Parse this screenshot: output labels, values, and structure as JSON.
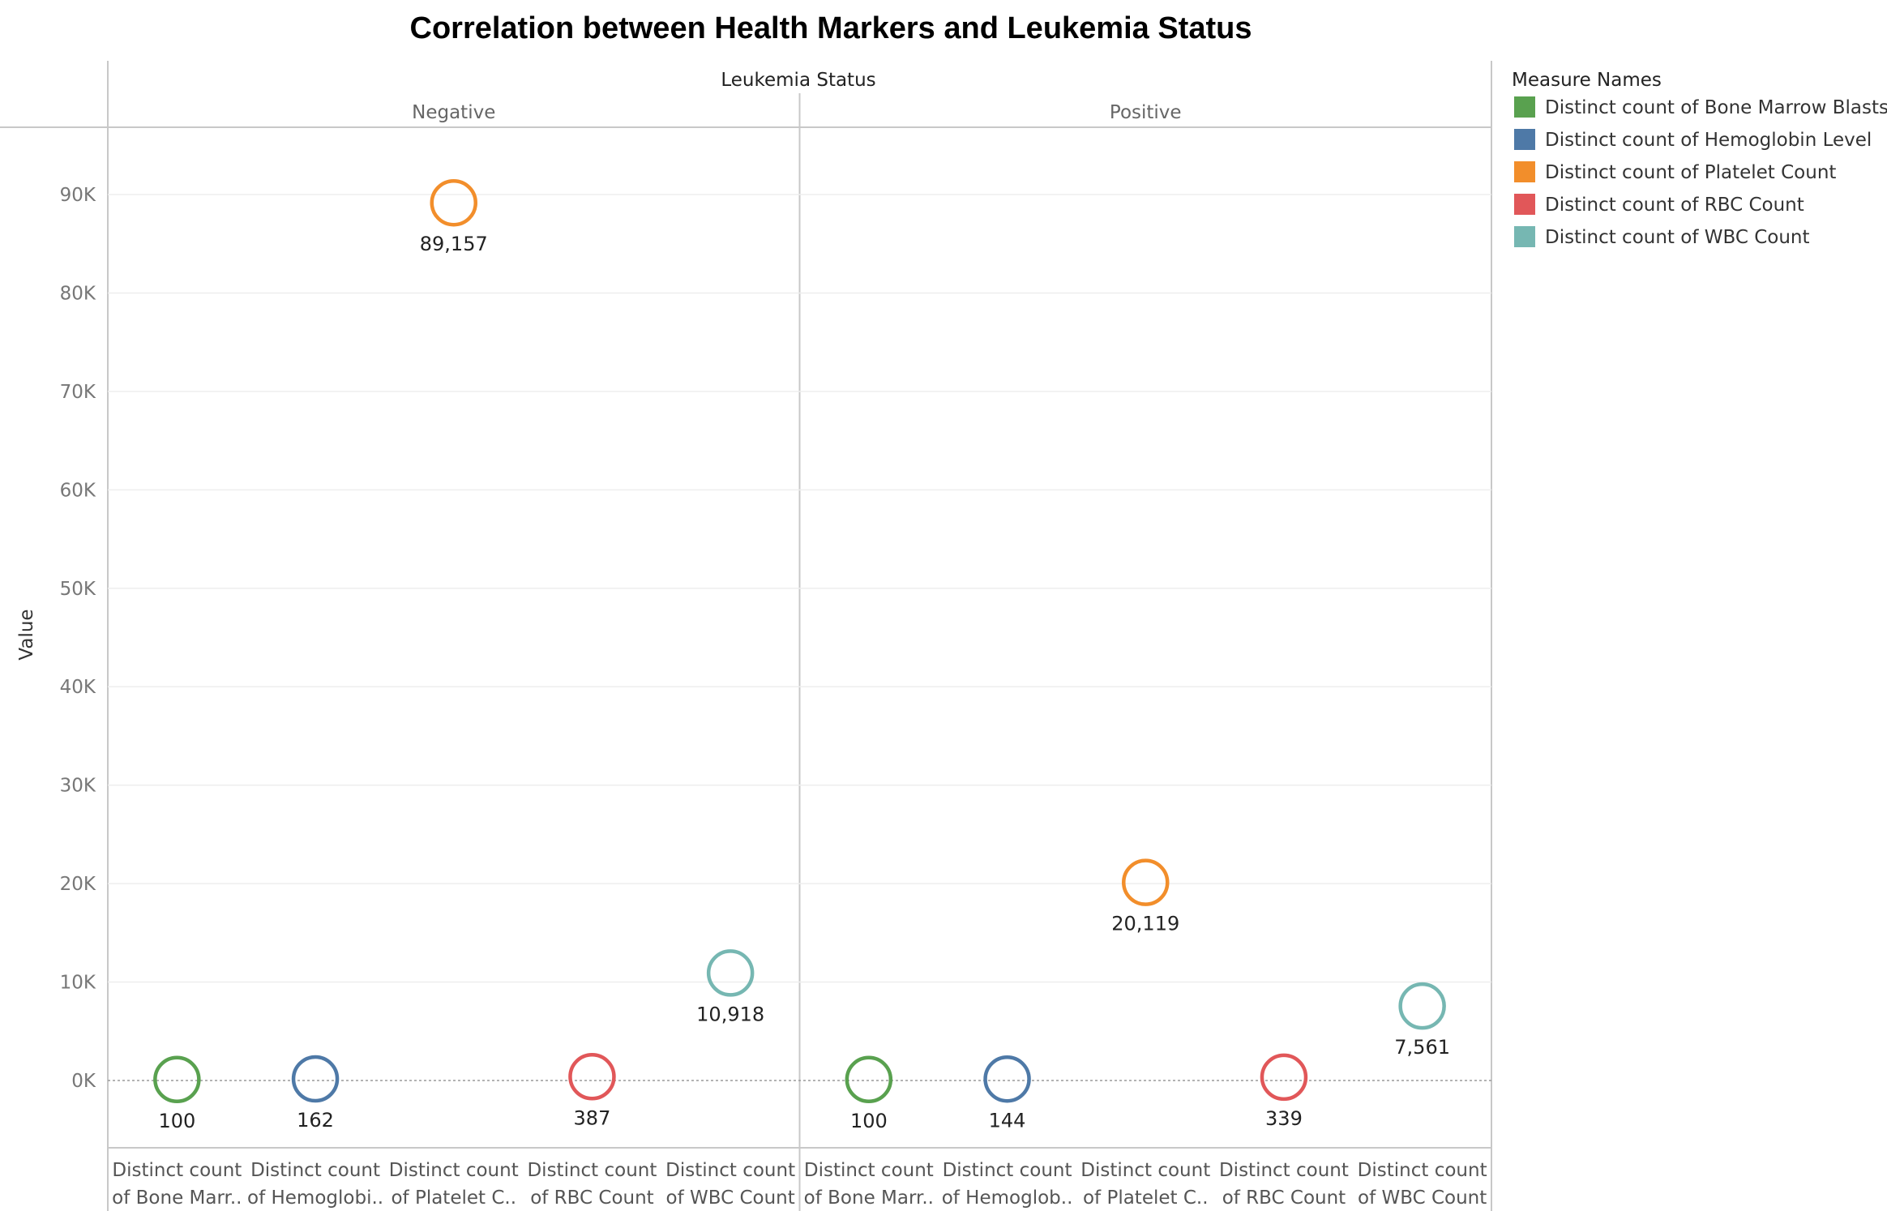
{
  "chart_data": {
    "type": "scatter",
    "title": "Correlation between Health Markers and Leukemia Status",
    "column_header": "Leukemia Status",
    "panels": [
      "Negative",
      "Positive"
    ],
    "ylabel": "Value",
    "ylim": [
      -6500,
      96000
    ],
    "yticks": [
      0,
      10000,
      20000,
      30000,
      40000,
      50000,
      60000,
      70000,
      80000,
      90000
    ],
    "ytick_labels": [
      "0K",
      "10K",
      "20K",
      "30K",
      "40K",
      "50K",
      "60K",
      "70K",
      "80K",
      "90K"
    ],
    "grid": true,
    "legend_placement": "right",
    "legend_title": "Measure Names",
    "series": [
      {
        "name": "Distinct count of Bone Marrow Blasts",
        "color": "#59A14F",
        "x_label_lines": [
          "Distinct count",
          "of Bone Marr.."
        ],
        "x_label_lines_positive": [
          "Distinct count",
          "of Bone Marr.."
        ],
        "values": {
          "Negative": 100,
          "Positive": 100
        },
        "value_labels": {
          "Negative": "100",
          "Positive": "100"
        }
      },
      {
        "name": "Distinct count of Hemoglobin Level",
        "color": "#4E79A7",
        "x_label_lines": [
          "Distinct count",
          "of Hemoglobi.."
        ],
        "x_label_lines_positive": [
          "Distinct count",
          "of Hemoglob.."
        ],
        "values": {
          "Negative": 162,
          "Positive": 144
        },
        "value_labels": {
          "Negative": "162",
          "Positive": "144"
        }
      },
      {
        "name": "Distinct count of Platelet Count",
        "color": "#F28E2B",
        "x_label_lines": [
          "Distinct count",
          "of Platelet C.."
        ],
        "x_label_lines_positive": [
          "Distinct count",
          "of Platelet C.."
        ],
        "values": {
          "Negative": 89157,
          "Positive": 20119
        },
        "value_labels": {
          "Negative": "89,157",
          "Positive": "20,119"
        }
      },
      {
        "name": "Distinct count of RBC Count",
        "color": "#E15759",
        "x_label_lines": [
          "Distinct count",
          "of RBC Count"
        ],
        "x_label_lines_positive": [
          "Distinct count",
          "of RBC Count"
        ],
        "values": {
          "Negative": 387,
          "Positive": 339
        },
        "value_labels": {
          "Negative": "387",
          "Positive": "339"
        }
      },
      {
        "name": "Distinct count of WBC Count",
        "color": "#76B7B2",
        "x_label_lines": [
          "Distinct count",
          "of WBC Count"
        ],
        "x_label_lines_positive": [
          "Distinct count",
          "of WBC Count"
        ],
        "values": {
          "Negative": 10918,
          "Positive": 7561
        },
        "value_labels": {
          "Negative": "10,918",
          "Positive": "7,561"
        }
      }
    ]
  }
}
